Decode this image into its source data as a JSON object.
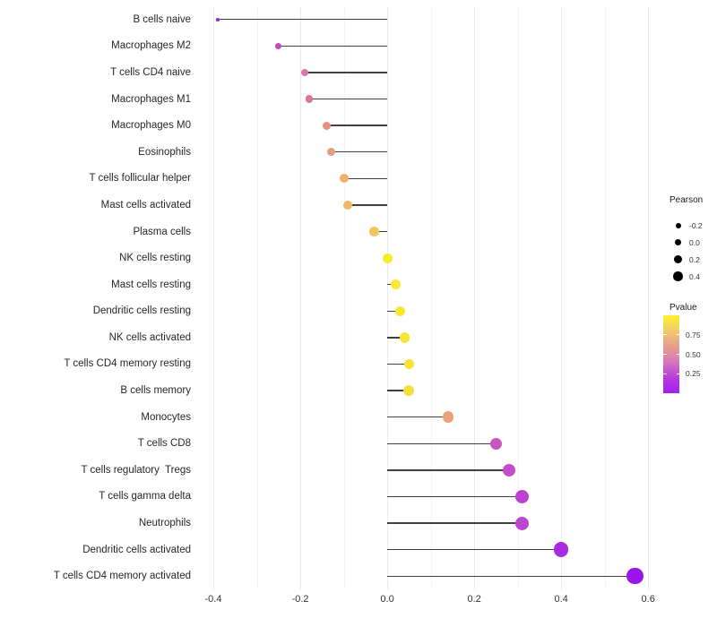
{
  "figure": {
    "background": "#ffffff",
    "stem_color": "#404040",
    "gridline_major_color": "#EBEBEB",
    "gridline_minor_color": "#F4F4F4"
  },
  "chart_data": {
    "type": "lollipop",
    "orientation": "horizontal",
    "title": "",
    "xlabel": "",
    "ylabel": "",
    "grid": true,
    "x_axis": {
      "range": [
        -0.433,
        0.614
      ],
      "major_ticks": [
        -0.4,
        -0.2,
        0.0,
        0.2,
        0.4,
        0.6
      ],
      "major_tick_labels": [
        "-0.4",
        "-0.2",
        "0.0",
        "0.2",
        "0.4",
        "0.6"
      ],
      "minor_ticks": [
        -0.3,
        -0.1,
        0.1,
        0.3,
        0.5
      ]
    },
    "size_encoding": "Pearson",
    "color_encoding": "Pvalue",
    "points": [
      {
        "label": "B cells naive",
        "pearson": -0.39,
        "dot_color": "#9D2BE4",
        "dot_size": 3.5
      },
      {
        "label": "Macrophages M2",
        "pearson": -0.25,
        "dot_color": "#C14AC1",
        "dot_size": 7
      },
      {
        "label": "T cells CD4 naive",
        "pearson": -0.19,
        "dot_color": "#D878A6",
        "dot_size": 8
      },
      {
        "label": "Macrophages M1",
        "pearson": -0.18,
        "dot_color": "#D67894",
        "dot_size": 8.5
      },
      {
        "label": "Macrophages M0",
        "pearson": -0.14,
        "dot_color": "#E4917D",
        "dot_size": 9
      },
      {
        "label": "Eosinophils",
        "pearson": -0.13,
        "dot_color": "#E69A7F",
        "dot_size": 9
      },
      {
        "label": "T cells follicular helper",
        "pearson": -0.1,
        "dot_color": "#EDB16C",
        "dot_size": 10
      },
      {
        "label": "Mast cells activated",
        "pearson": -0.09,
        "dot_color": "#EFB763",
        "dot_size": 10
      },
      {
        "label": "Plasma cells",
        "pearson": -0.03,
        "dot_color": "#F1C55C",
        "dot_size": 10.5
      },
      {
        "label": "NK cells resting",
        "pearson": 0.0,
        "dot_color": "#F7EC28",
        "dot_size": 11
      },
      {
        "label": "Mast cells resting",
        "pearson": 0.02,
        "dot_color": "#F6E930",
        "dot_size": 11
      },
      {
        "label": "Dendritic cells resting",
        "pearson": 0.03,
        "dot_color": "#F6E732",
        "dot_size": 11
      },
      {
        "label": "NK cells activated",
        "pearson": 0.04,
        "dot_color": "#F5E535",
        "dot_size": 11.5
      },
      {
        "label": "T cells CD4 memory resting",
        "pearson": 0.05,
        "dot_color": "#F5E336",
        "dot_size": 11.5
      },
      {
        "label": "B cells memory",
        "pearson": 0.05,
        "dot_color": "#F3DE3C",
        "dot_size": 12
      },
      {
        "label": "Monocytes",
        "pearson": 0.14,
        "dot_color": "#EDA07E",
        "dot_size": 12.5
      },
      {
        "label": "T cells CD8",
        "pearson": 0.25,
        "dot_color": "#C756BC",
        "dot_size": 13.5
      },
      {
        "label": "T cells regulatory  Tregs",
        "pearson": 0.28,
        "dot_color": "#C44EC8",
        "dot_size": 14.5
      },
      {
        "label": "T cells gamma delta",
        "pearson": 0.31,
        "dot_color": "#BC41D1",
        "dot_size": 15
      },
      {
        "label": "Neutrophils",
        "pearson": 0.31,
        "dot_color": "#BD46CE",
        "dot_size": 15
      },
      {
        "label": "Dendritic cells activated",
        "pearson": 0.4,
        "dot_color": "#A92BE1",
        "dot_size": 16.5
      },
      {
        "label": "T cells CD4 memory activated",
        "pearson": 0.57,
        "dot_color": "#9A15E9",
        "dot_size": 18.5
      }
    ]
  },
  "legend": {
    "pearson": {
      "title": "Pearson",
      "dot_color": "#000000",
      "entries": [
        {
          "label": "-0.2",
          "size": 6
        },
        {
          "label": "0.0",
          "size": 7.5
        },
        {
          "label": "0.2",
          "size": 9
        },
        {
          "label": "0.4",
          "size": 10.5
        }
      ]
    },
    "pvalue": {
      "title": "Pvalue",
      "tick_labels": [
        "0.75",
        "0.50",
        "0.25"
      ],
      "tick_positions_pct": [
        25,
        50,
        75
      ],
      "gradient_top_to_bottom": [
        "#FBF32A",
        "#F2C96C",
        "#E59D8E",
        "#D678BC",
        "#B93BDC",
        "#A121EF"
      ]
    }
  }
}
